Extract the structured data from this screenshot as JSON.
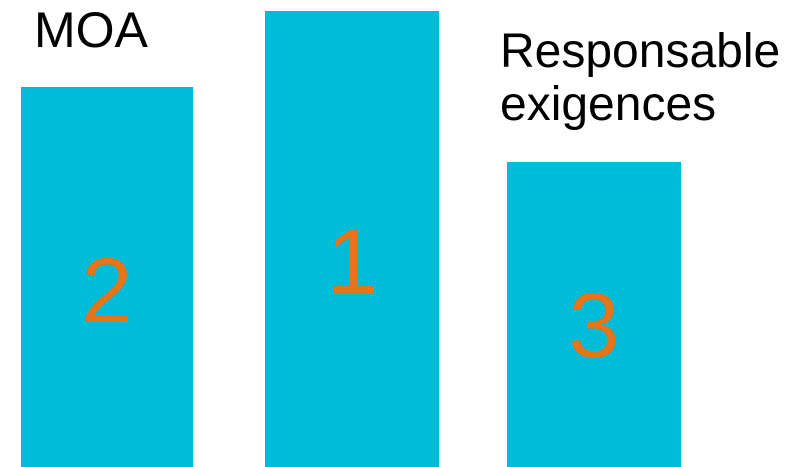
{
  "podiums": [
    {
      "rank": "2",
      "label": "MOA"
    },
    {
      "rank": "1",
      "label": ""
    },
    {
      "rank": "3",
      "label_lines": [
        "Responsable",
        "exigences"
      ]
    }
  ],
  "colors": {
    "bar": "#00bcd9",
    "rank_text": "#e67418",
    "label_text": "#000000",
    "background": "#ffffff"
  }
}
